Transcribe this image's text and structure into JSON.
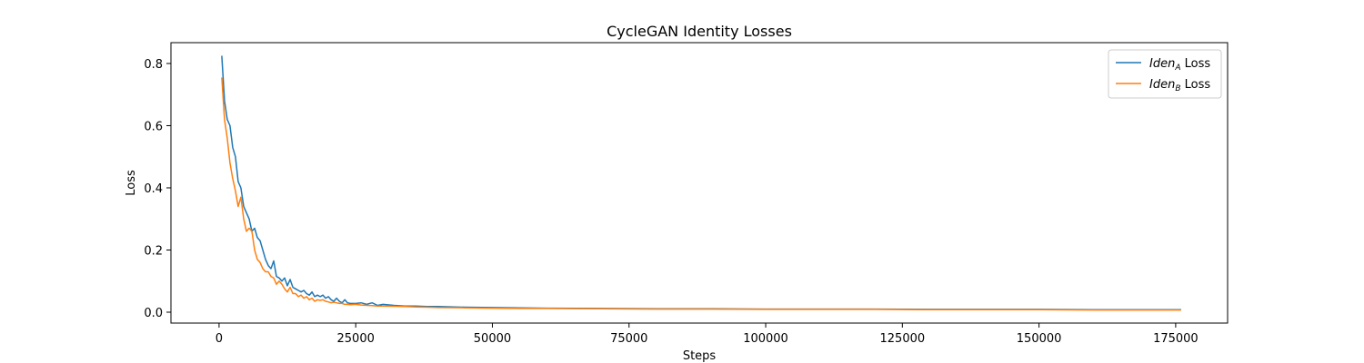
{
  "chart_data": {
    "type": "line",
    "title": "CycleGAN Identity Losses",
    "xlabel": "Steps",
    "ylabel": "Loss",
    "xlim": [
      -8800,
      184500
    ],
    "ylim": [
      -0.035,
      0.867
    ],
    "xticks": [
      0,
      25000,
      50000,
      75000,
      100000,
      125000,
      150000,
      175000
    ],
    "yticks": [
      0.0,
      0.2,
      0.4,
      0.6,
      0.8
    ],
    "grid": false,
    "legend": {
      "placement": "top-right"
    },
    "series": [
      {
        "name_base": "Iden",
        "name_sub": "A",
        "name_suffix": " Loss",
        "color": "#1f77b4",
        "x": [
          500,
          1000,
          1500,
          2000,
          2500,
          3000,
          3500,
          4000,
          4500,
          5000,
          5500,
          6000,
          6500,
          7000,
          7500,
          8000,
          8500,
          9000,
          9500,
          10000,
          10500,
          11000,
          11500,
          12000,
          12500,
          13000,
          13500,
          14000,
          14500,
          15000,
          15500,
          16000,
          16500,
          17000,
          17500,
          18000,
          18500,
          19000,
          19500,
          20000,
          20500,
          21000,
          21500,
          22000,
          22500,
          23000,
          23500,
          24000,
          25000,
          26000,
          27000,
          28000,
          29000,
          30000,
          32000,
          34000,
          36000,
          38000,
          40000,
          45000,
          50000,
          55000,
          60000,
          70000,
          80000,
          90000,
          100000,
          110000,
          120000,
          130000,
          140000,
          150000,
          160000,
          170000,
          176000
        ],
        "y": [
          0.825,
          0.68,
          0.62,
          0.6,
          0.53,
          0.5,
          0.42,
          0.4,
          0.34,
          0.32,
          0.3,
          0.26,
          0.27,
          0.24,
          0.23,
          0.2,
          0.17,
          0.15,
          0.14,
          0.165,
          0.115,
          0.11,
          0.1,
          0.11,
          0.085,
          0.105,
          0.08,
          0.075,
          0.07,
          0.065,
          0.07,
          0.06,
          0.055,
          0.065,
          0.05,
          0.055,
          0.05,
          0.055,
          0.045,
          0.05,
          0.04,
          0.035,
          0.045,
          0.035,
          0.03,
          0.04,
          0.03,
          0.028,
          0.028,
          0.03,
          0.025,
          0.03,
          0.022,
          0.025,
          0.022,
          0.02,
          0.02,
          0.018,
          0.018,
          0.016,
          0.015,
          0.014,
          0.013,
          0.012,
          0.011,
          0.011,
          0.01,
          0.01,
          0.01,
          0.009,
          0.009,
          0.009,
          0.008,
          0.008,
          0.008
        ]
      },
      {
        "name_base": "Iden",
        "name_sub": "B",
        "name_suffix": " Loss",
        "color": "#ff7f0e",
        "x": [
          500,
          1000,
          1500,
          2000,
          2500,
          3000,
          3500,
          4000,
          4500,
          5000,
          5500,
          6000,
          6500,
          7000,
          7500,
          8000,
          8500,
          9000,
          9500,
          10000,
          10500,
          11000,
          11500,
          12000,
          12500,
          13000,
          13500,
          14000,
          14500,
          15000,
          15500,
          16000,
          16500,
          17000,
          17500,
          18000,
          18500,
          19000,
          19500,
          20000,
          20500,
          21000,
          21500,
          22000,
          22500,
          23000,
          23500,
          24000,
          25000,
          26000,
          27000,
          28000,
          29000,
          30000,
          32000,
          34000,
          36000,
          38000,
          40000,
          45000,
          50000,
          55000,
          60000,
          70000,
          80000,
          90000,
          100000,
          110000,
          120000,
          130000,
          140000,
          150000,
          160000,
          170000,
          176000
        ],
        "y": [
          0.755,
          0.62,
          0.56,
          0.48,
          0.43,
          0.39,
          0.34,
          0.37,
          0.3,
          0.26,
          0.27,
          0.26,
          0.2,
          0.17,
          0.16,
          0.14,
          0.13,
          0.13,
          0.115,
          0.11,
          0.09,
          0.1,
          0.09,
          0.075,
          0.065,
          0.08,
          0.06,
          0.06,
          0.05,
          0.055,
          0.045,
          0.05,
          0.04,
          0.045,
          0.035,
          0.04,
          0.038,
          0.04,
          0.035,
          0.033,
          0.03,
          0.032,
          0.03,
          0.028,
          0.028,
          0.025,
          0.025,
          0.024,
          0.025,
          0.023,
          0.022,
          0.021,
          0.02,
          0.02,
          0.019,
          0.018,
          0.017,
          0.016,
          0.015,
          0.014,
          0.013,
          0.012,
          0.012,
          0.011,
          0.01,
          0.01,
          0.009,
          0.009,
          0.009,
          0.008,
          0.008,
          0.008,
          0.007,
          0.007,
          0.007
        ]
      }
    ]
  }
}
